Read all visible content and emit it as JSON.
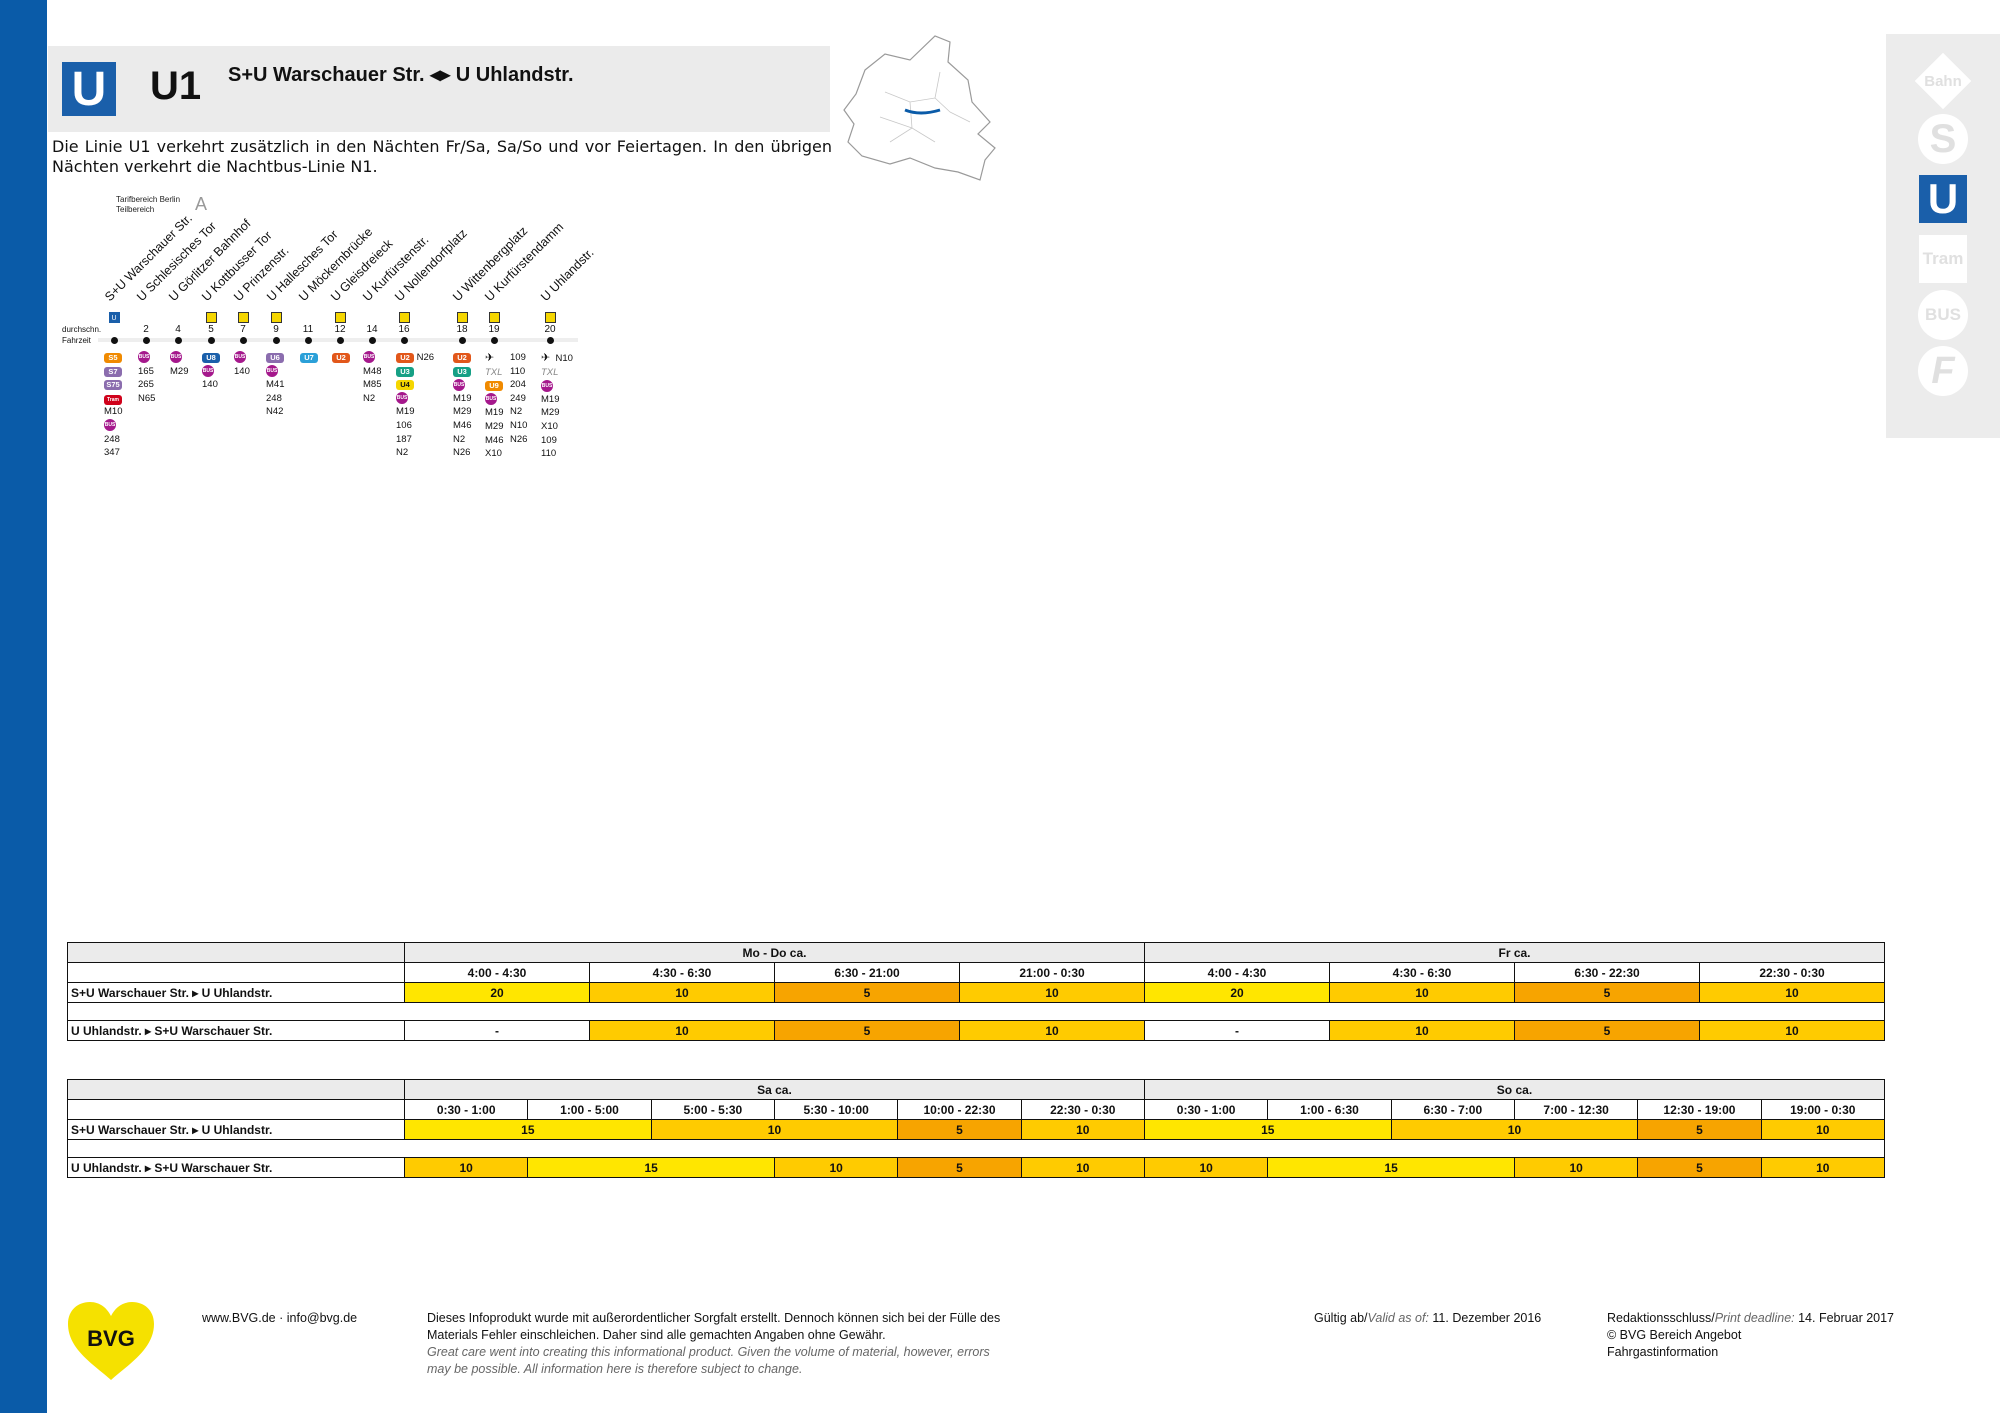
{
  "header": {
    "line_logo": "U",
    "line_name": "U1",
    "route_title": "S+U Warschauer Str. ◂▸ U Uhlandstr.",
    "intro": "Die Linie U1 verkehrt zusätzlich in den Nächten Fr/Sa, Sa/So und vor Feiertagen. In den übrigen Nächten verkehrt die Nachtbus-Linie N1."
  },
  "mode_nav": [
    {
      "label": "Bahn",
      "icon": "db-bahn-icon",
      "active": false
    },
    {
      "label": "S",
      "icon": "s-bahn-icon",
      "active": false
    },
    {
      "label": "U",
      "icon": "u-bahn-icon",
      "active": true
    },
    {
      "label": "Tram",
      "icon": "tram-icon",
      "active": false
    },
    {
      "label": "BUS",
      "icon": "bus-icon",
      "active": false
    },
    {
      "label": "F",
      "icon": "ferry-icon",
      "active": false
    }
  ],
  "stations_block": {
    "tarif_label_1": "Tarifbereich Berlin",
    "tarif_label_2": "Teilbereich",
    "tarif_zone": "A",
    "row_label_1": "durchschn.",
    "row_label_2": "Fahrzeit",
    "stations": [
      {
        "name": "S+U Warschauer Str.",
        "time": "",
        "icon": "u"
      },
      {
        "name": "U Schlesisches Tor",
        "time": "2",
        "icon": ""
      },
      {
        "name": "U Görlitzer Bahnhof",
        "time": "4",
        "icon": ""
      },
      {
        "name": "U Kottbusser Tor",
        "time": "5",
        "icon": "y"
      },
      {
        "name": "U Prinzenstr.",
        "time": "7",
        "icon": "y"
      },
      {
        "name": "U Hallesches Tor",
        "time": "9",
        "icon": "y"
      },
      {
        "name": "U Möckernbrücke",
        "time": "11",
        "icon": ""
      },
      {
        "name": "U Gleisdreieck",
        "time": "12",
        "icon": "y"
      },
      {
        "name": "U Kurfürstenstr.",
        "time": "14",
        "icon": ""
      },
      {
        "name": "U Nollendorfplatz",
        "time": "16",
        "icon": "y"
      },
      {
        "name": "U Wittenbergplatz",
        "time": "18",
        "icon": "y"
      },
      {
        "name": "U Kurfürstendamm",
        "time": "19",
        "icon": "y"
      },
      {
        "name": "U Uhlandstr.",
        "time": "20",
        "icon": "y"
      }
    ],
    "connections": {
      "c0_a": "S5",
      "c0_b": "S7",
      "c0_c": "S75",
      "c0_d": "Tram",
      "c0_e": "M10",
      "c0_f": "BUS",
      "c0_g": "248",
      "c0_h": "347",
      "c1_a": "BUS",
      "c1_b": "165",
      "c1_c": "265",
      "c1_d": "N65",
      "c2_a": "BUS",
      "c2_b": "M29",
      "c3_a": "U8",
      "c3_b": "BUS",
      "c3_c": "140",
      "c4_a": "BUS",
      "c4_b": "140",
      "c5_a": "U6",
      "c5_b": "BUS",
      "c5_c": "M41",
      "c5_d": "248",
      "c5_e": "N42",
      "c6_a": "U7",
      "c7_a": "U2",
      "c8_a": "BUS",
      "c8_b": "M48",
      "c8_c": "M85",
      "c8_d": "N2",
      "c9_a": "U2",
      "c9_b": "N26",
      "c9_c": "U3",
      "c9_d": "U4",
      "c9_e": "BUS",
      "c9_f": "M19",
      "c9_g": "106",
      "c9_h": "187",
      "c9_i": "N2",
      "c10_a": "U2",
      "c10_b": "U3",
      "c10_c": "BUS",
      "c10_d": "M19",
      "c10_e": "M29",
      "c10_f": "M46",
      "c10_g": "N2",
      "c10_h": "N26",
      "c11_a": "TXL",
      "c11_b": "U9",
      "c11_c": "BUS",
      "c11_d": "M19",
      "c11_e": "M29",
      "c11_f": "M46",
      "c11_g": "X10",
      "c11_h": "109",
      "c11_i": "110",
      "c11_j": "204",
      "c11_k": "249",
      "c11_l": "N2",
      "c11_m": "N10",
      "c11_n": "N26",
      "c12_a": "N10",
      "c12_b": "TXL",
      "c12_c": "BUS",
      "c12_d": "M19",
      "c12_e": "M29",
      "c12_f": "X10",
      "c12_g": "109",
      "c12_h": "110"
    }
  },
  "weekday_table": {
    "day1": "Mo - Do ca.",
    "day2": "Fr ca.",
    "times": [
      "4:00 - 4:30",
      "4:30 - 6:30",
      "6:30 - 21:00",
      "21:00 - 0:30",
      "4:00 - 4:30",
      "4:30 - 6:30",
      "6:30 - 22:30",
      "22:30 - 0:30"
    ],
    "dir1_label": "S+U Warschauer Str. ▸ U Uhlandstr.",
    "dir1_values": [
      "20",
      "10",
      "5",
      "10",
      "20",
      "10",
      "5",
      "10"
    ],
    "dir2_label": "U Uhlandstr. ▸ S+U Warschauer Str.",
    "dir2_values": [
      "-",
      "10",
      "5",
      "10",
      "-",
      "10",
      "5",
      "10"
    ]
  },
  "weekend_table": {
    "day1": "Sa ca.",
    "day2": "So ca.",
    "times": [
      "0:30 - 1:00",
      "1:00 - 5:00",
      "5:00 - 5:30",
      "5:30 - 10:00",
      "10:00 - 22:30",
      "22:30 - 0:30",
      "0:30 - 1:00",
      "1:00 - 6:30",
      "6:30 - 7:00",
      "7:00 - 12:30",
      "12:30 - 19:00",
      "19:00 - 0:30"
    ],
    "dir1_label": "S+U Warschauer Str. ▸ U Uhlandstr.",
    "dir1_values": [
      "15",
      "10",
      "5",
      "10",
      "15",
      "10",
      "5",
      "10"
    ],
    "dir2_label": "U Uhlandstr. ▸ S+U Warschauer Str.",
    "dir2_values": [
      "10",
      "15",
      "10",
      "5",
      "10",
      "10",
      "15",
      "10",
      "5",
      "10"
    ]
  },
  "footer": {
    "logo_text": "BVG",
    "contact": "www.BVG.de · info@bvg.de",
    "disclaimer_de_1": "Dieses Infoprodukt wurde mit außerordentlicher Sorgfalt erstellt. Dennoch können sich bei der Fülle des",
    "disclaimer_de_2": "Materials Fehler einschleichen. Daher sind alle gemachten Angaben ohne Gewähr.",
    "disclaimer_en_1": "Great care went into creating this informational product. Given the volume of material, however, errors",
    "disclaimer_en_2": "may be possible. All information here is therefore subject to change.",
    "valid_label": "Gültig ab/",
    "valid_label_en": "Valid as of:",
    "valid_date": "11. Dezember 2016",
    "deadline_label": "Redaktionsschluss/",
    "deadline_label_en": "Print deadline:",
    "deadline_date": "14. Februar 2017",
    "copyright": "© BVG Bereich Angebot",
    "dept": "Fahrgastinformation"
  },
  "colors": {
    "accent_blue": "#0a5ba8",
    "freq_20": "#ffe600",
    "freq_10": "#ffcb00",
    "freq_5": "#f7a400"
  }
}
